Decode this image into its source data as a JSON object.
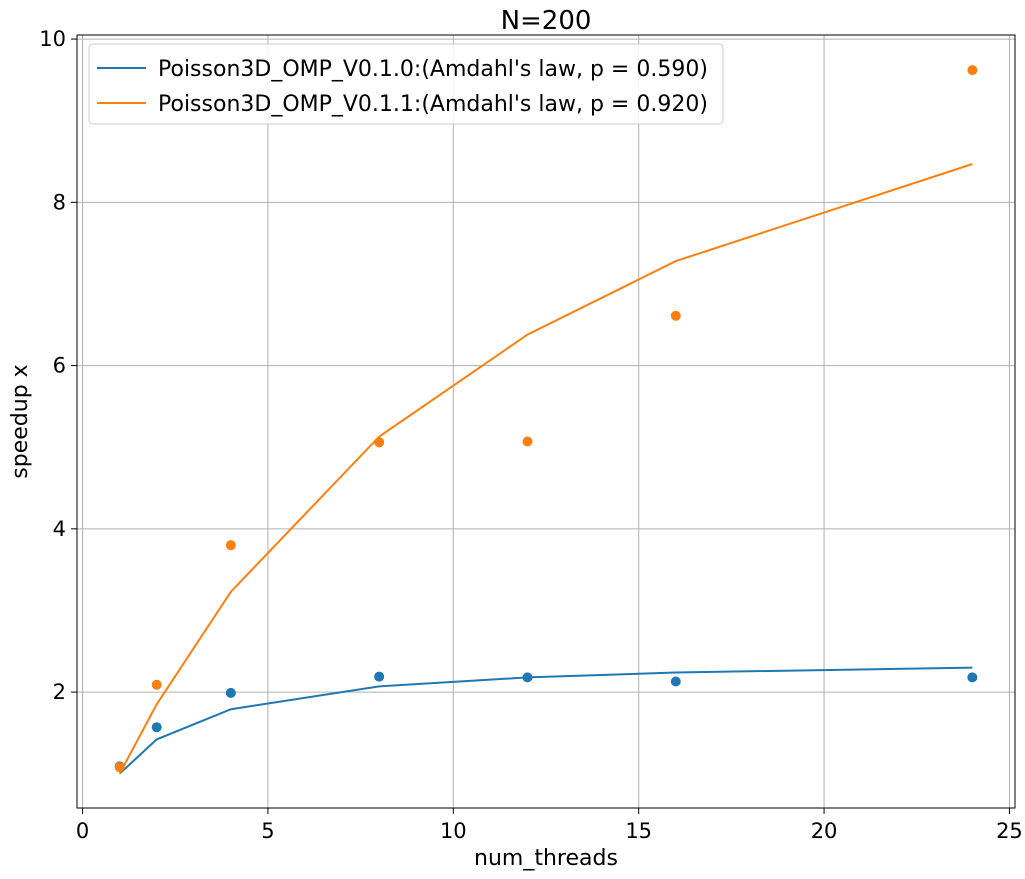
{
  "chart_data": {
    "type": "line",
    "title": "N=200",
    "xlabel": "num_threads",
    "ylabel": "speedup x",
    "xlim": [
      -0.15,
      25.15
    ],
    "ylim": [
      0.58,
      10.05
    ],
    "xticks": [
      0,
      5,
      10,
      15,
      20,
      25
    ],
    "yticks": [
      2,
      4,
      6,
      8,
      10
    ],
    "grid": true,
    "legend_position": "top-left",
    "series": [
      {
        "name": "Poisson3D_OMP_V0.1.0:(Amdahl's law, p = 0.590)",
        "color": "#1f77b4",
        "fit_x": [
          1,
          2,
          4,
          8,
          12,
          16,
          24
        ],
        "fit_y": [
          1.0,
          1.42,
          1.79,
          2.07,
          2.18,
          2.24,
          2.3
        ],
        "points_x": [
          1,
          2,
          4,
          8,
          12,
          16,
          24
        ],
        "points_y": [
          1.09,
          1.57,
          1.99,
          2.19,
          2.18,
          2.13,
          2.18
        ]
      },
      {
        "name": "Poisson3D_OMP_V0.1.1:(Amdahl's law, p = 0.920)",
        "color": "#ff7f0e",
        "fit_x": [
          1,
          2,
          4,
          8,
          12,
          16,
          24
        ],
        "fit_y": [
          1.0,
          1.85,
          3.23,
          5.13,
          6.38,
          7.28,
          8.47
        ],
        "points_x": [
          1,
          2,
          4,
          8,
          12,
          16,
          24
        ],
        "points_y": [
          1.08,
          2.09,
          3.8,
          5.06,
          5.07,
          6.61,
          9.62
        ]
      }
    ]
  }
}
